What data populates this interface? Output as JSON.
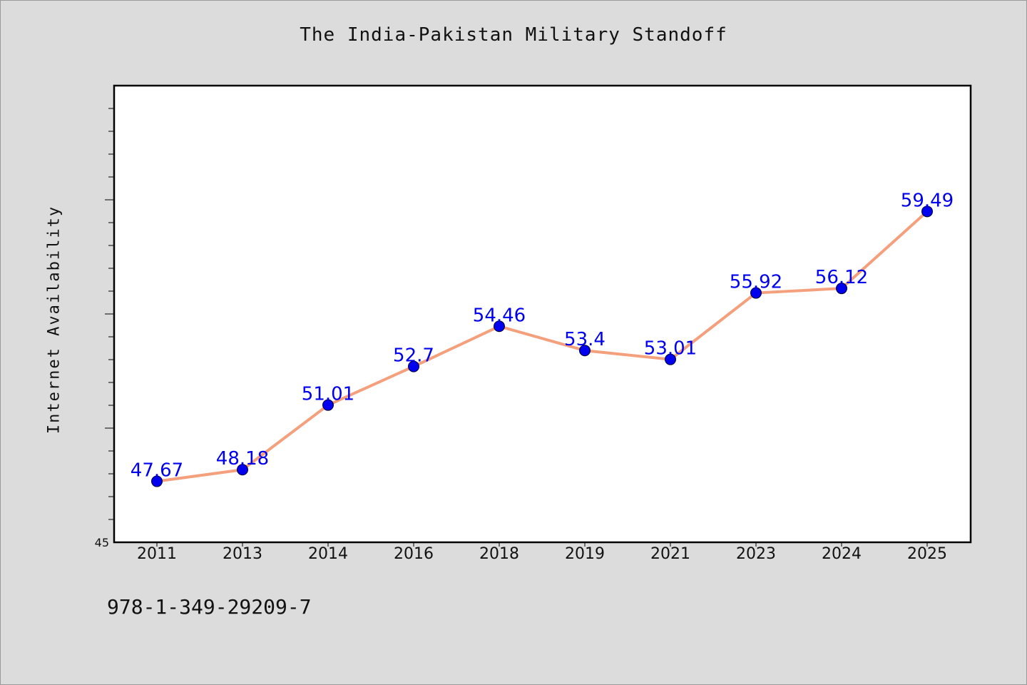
{
  "chart_data": {
    "type": "line",
    "title": "The India-Pakistan Military Standoff",
    "xlabel": "",
    "ylabel": "Internet Availability",
    "categories": [
      "2011",
      "2013",
      "2014",
      "2016",
      "2018",
      "2019",
      "2021",
      "2023",
      "2024",
      "2025"
    ],
    "series": [
      {
        "values": [
          47.67,
          48.18,
          51.01,
          52.7,
          54.46,
          53.4,
          53.01,
          55.92,
          56.12,
          59.49
        ]
      }
    ],
    "data_labels": [
      "47.67",
      "48.18",
      "51.01",
      "52.7",
      "54.46",
      "53.4",
      "53.01",
      "55.92",
      "56.12",
      "59.49"
    ],
    "ylim": [
      45,
      65
    ],
    "y_tick_label": "45",
    "grid": false,
    "line_color": "#f4a07c",
    "marker_color": "#0000ee",
    "label_color": "#0000ee",
    "plot_background": "#ffffff",
    "page_background": "#dcdcdc"
  },
  "footer": {
    "text": "978-1-349-29209-7"
  }
}
